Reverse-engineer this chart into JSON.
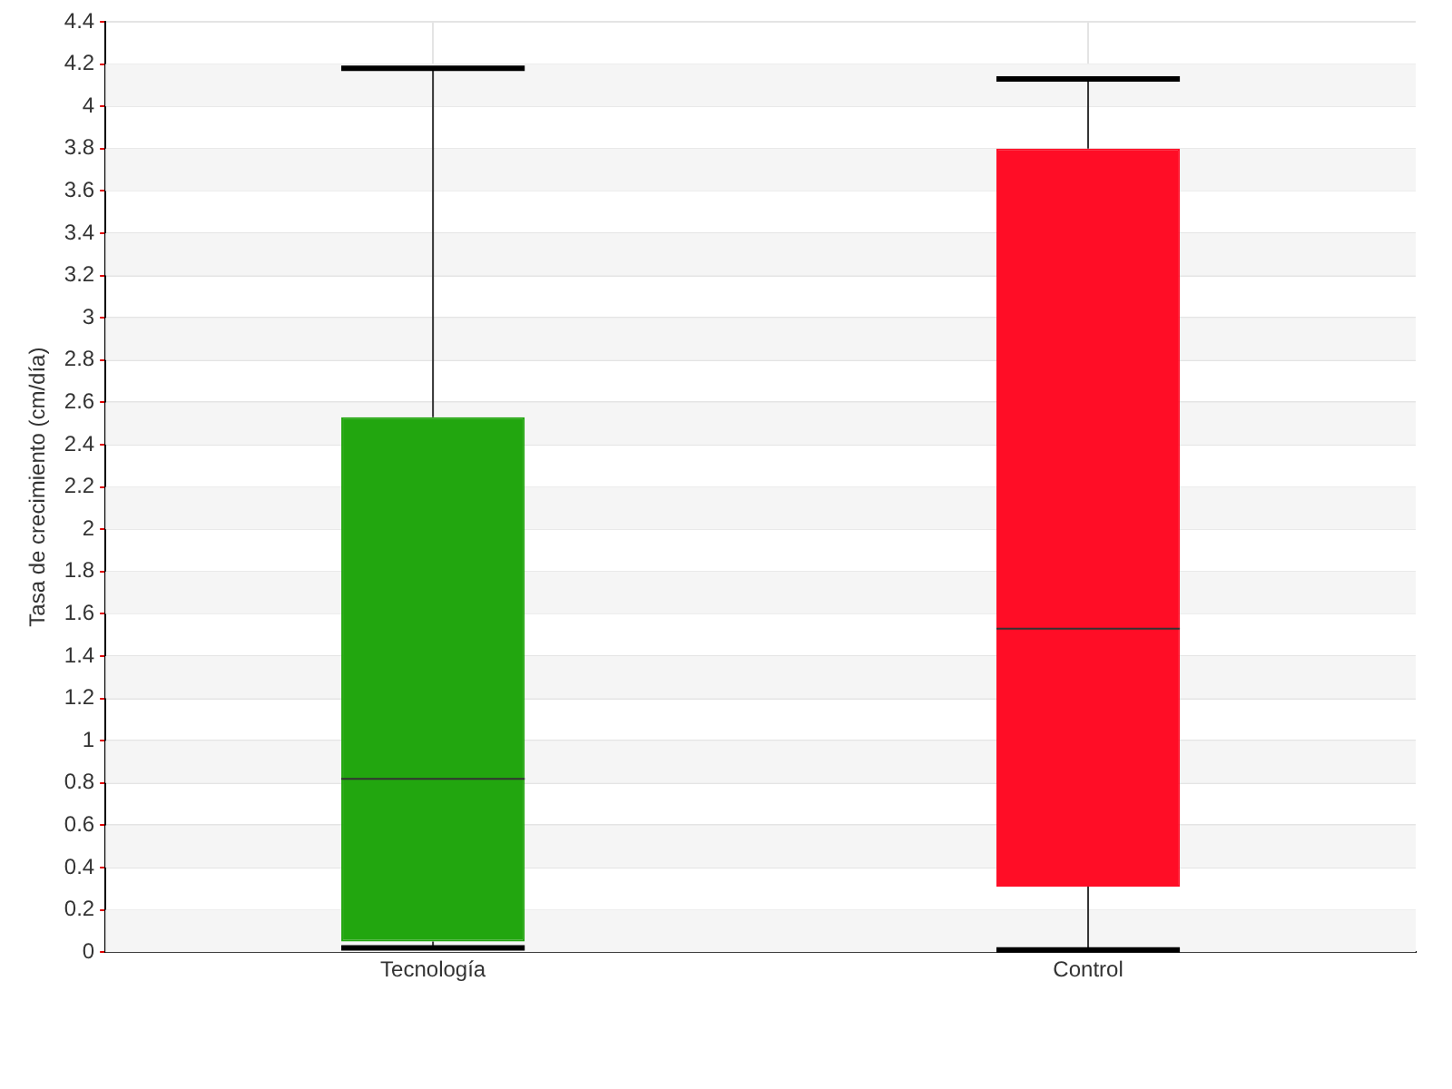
{
  "chart_data": {
    "type": "box",
    "ylabel": "Tasa de crecimiento (cm/día)",
    "categories": [
      "Tecnología",
      "Control"
    ],
    "colors": [
      "#22a60f",
      "#ff0d26"
    ],
    "boxes": [
      {
        "low": 0.02,
        "q1": 0.05,
        "median": 0.82,
        "q3": 2.53,
        "high": 4.18
      },
      {
        "low": 0.01,
        "q1": 0.31,
        "median": 1.53,
        "q3": 3.8,
        "high": 4.13
      }
    ],
    "ylim": [
      0,
      4.4
    ],
    "yticks": [
      0,
      0.2,
      0.4,
      0.6,
      0.8,
      1,
      1.2,
      1.4,
      1.6,
      1.8,
      2,
      2.2,
      2.4,
      2.6,
      2.8,
      3,
      3.2,
      3.4,
      3.6,
      3.8,
      4,
      4.2,
      4.4
    ],
    "grid": true,
    "legend": false
  }
}
